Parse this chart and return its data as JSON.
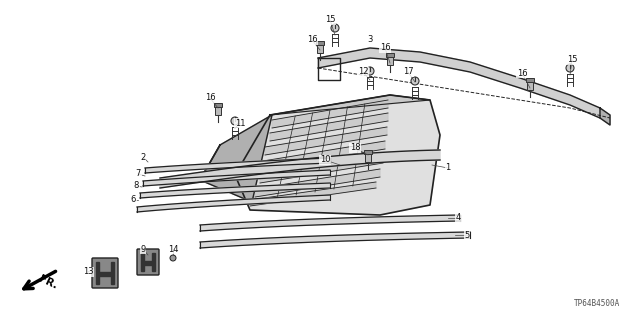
{
  "bg_color": "#ffffff",
  "part_code": "TP64B4500A",
  "text_color": "#111111",
  "line_color": "#222222",
  "fig_width": 6.4,
  "fig_height": 3.19,
  "dpi": 100
}
